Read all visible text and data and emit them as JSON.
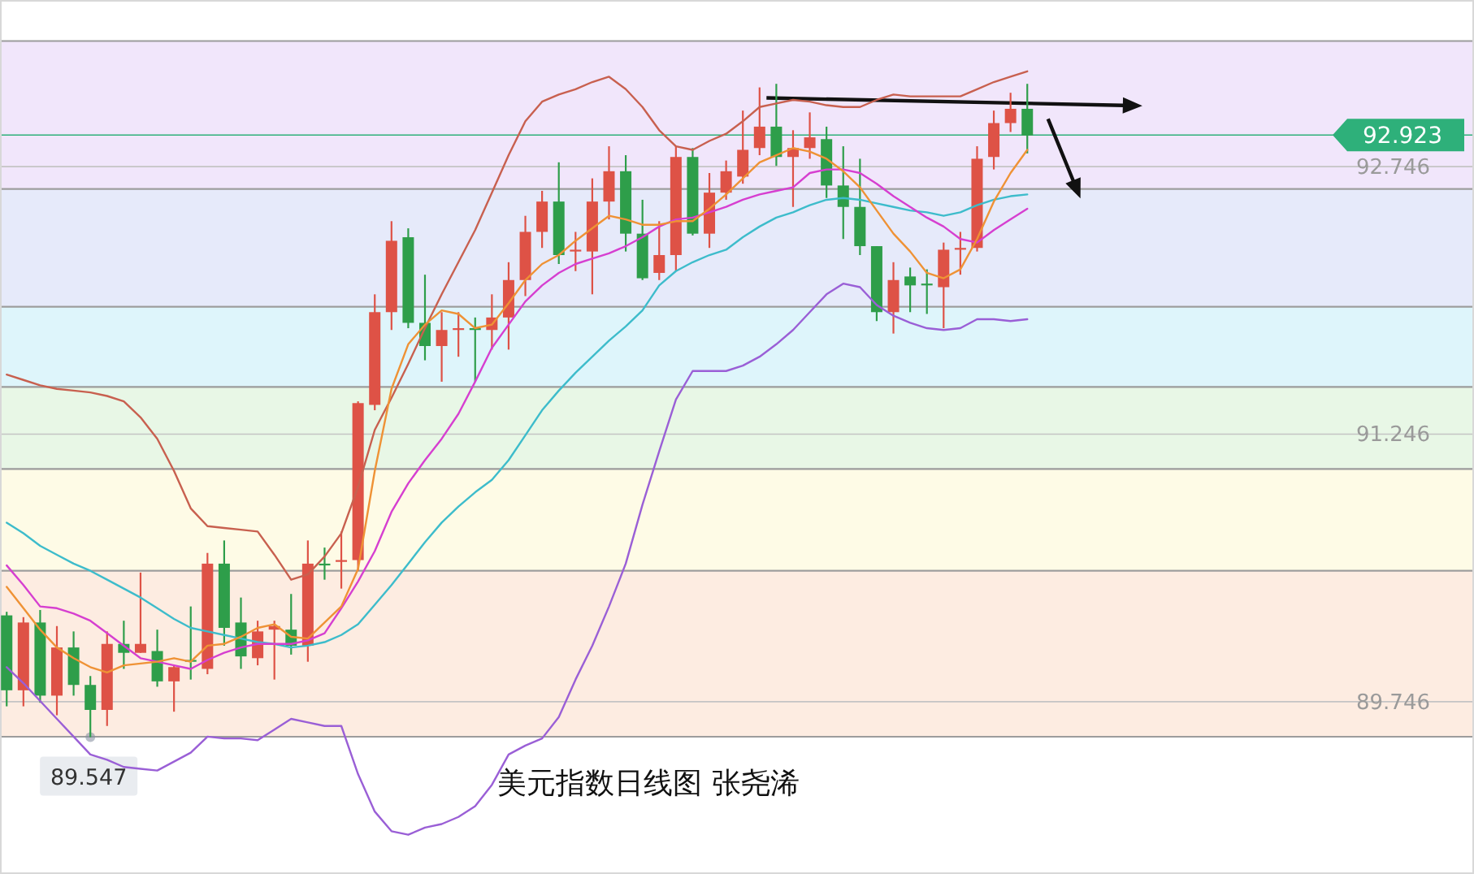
{
  "chart_data": {
    "type": "candlestick",
    "title": "美元指数日线图 张尧浠",
    "categories": [
      null,
      null,
      null,
      null,
      null,
      null,
      null,
      null,
      null,
      null,
      null,
      null,
      null,
      null,
      null,
      null,
      null,
      null,
      null,
      null,
      null,
      null,
      null,
      null,
      null,
      null,
      null,
      null,
      null,
      null,
      null,
      null,
      null,
      null,
      null,
      null,
      null,
      null,
      null,
      null,
      null,
      null,
      null,
      null,
      null,
      null,
      null,
      null,
      null,
      null,
      null,
      null,
      null,
      null,
      null,
      null,
      null,
      null,
      null,
      null,
      null,
      null
    ],
    "ohlc": [
      [
        90.23,
        90.25,
        89.72,
        89.81
      ],
      [
        89.81,
        90.22,
        89.72,
        90.19
      ],
      [
        90.19,
        90.26,
        89.74,
        89.78
      ],
      [
        89.78,
        90.17,
        89.67,
        90.05
      ],
      [
        90.05,
        90.14,
        89.78,
        89.84
      ],
      [
        89.84,
        89.89,
        89.547,
        89.7
      ],
      [
        89.7,
        90.14,
        89.61,
        90.07
      ],
      [
        90.07,
        90.2,
        89.93,
        90.02
      ],
      [
        90.02,
        90.47,
        90.02,
        90.07
      ],
      [
        90.03,
        90.15,
        89.83,
        89.86
      ],
      [
        89.86,
        89.95,
        89.69,
        89.94
      ],
      [
        89.98,
        90.28,
        89.87,
        89.97
      ],
      [
        89.93,
        90.58,
        89.9,
        90.52
      ],
      [
        90.52,
        90.65,
        90.06,
        90.16
      ],
      [
        90.19,
        90.33,
        89.93,
        90.0
      ],
      [
        89.99,
        90.2,
        89.95,
        90.14
      ],
      [
        90.15,
        90.2,
        89.87,
        90.17
      ],
      [
        90.15,
        90.35,
        90.01,
        90.06
      ],
      [
        90.06,
        90.65,
        89.97,
        90.52
      ],
      [
        90.52,
        90.61,
        90.43,
        90.51
      ],
      [
        90.53,
        90.7,
        90.38,
        90.54
      ],
      [
        90.54,
        91.43,
        90.48,
        91.42
      ],
      [
        91.41,
        92.03,
        91.38,
        91.93
      ],
      [
        91.93,
        92.44,
        91.83,
        92.33
      ],
      [
        92.35,
        92.4,
        91.84,
        91.87
      ],
      [
        91.87,
        92.14,
        91.66,
        91.74
      ],
      [
        91.74,
        91.93,
        91.54,
        91.83
      ],
      [
        91.83,
        91.93,
        91.68,
        91.84
      ],
      [
        91.84,
        91.9,
        91.54,
        91.83
      ],
      [
        91.83,
        92.03,
        91.72,
        91.9
      ],
      [
        91.9,
        92.21,
        91.72,
        92.11
      ],
      [
        92.11,
        92.47,
        92.02,
        92.38
      ],
      [
        92.38,
        92.61,
        92.29,
        92.55
      ],
      [
        92.55,
        92.77,
        92.2,
        92.25
      ],
      [
        92.27,
        92.38,
        92.16,
        92.28
      ],
      [
        92.27,
        92.68,
        92.03,
        92.55
      ],
      [
        92.55,
        92.86,
        92.45,
        92.72
      ],
      [
        92.72,
        92.81,
        92.27,
        92.37
      ],
      [
        92.37,
        92.56,
        92.11,
        92.12
      ],
      [
        92.15,
        92.44,
        92.11,
        92.25
      ],
      [
        92.25,
        92.86,
        92.16,
        92.8
      ],
      [
        92.8,
        92.85,
        92.36,
        92.37
      ],
      [
        92.37,
        92.71,
        92.29,
        92.6
      ],
      [
        92.6,
        92.78,
        92.56,
        92.72
      ],
      [
        92.69,
        93.06,
        92.65,
        92.84
      ],
      [
        92.85,
        93.19,
        92.81,
        92.97
      ],
      [
        92.97,
        93.21,
        92.75,
        92.8
      ],
      [
        92.8,
        92.95,
        92.52,
        92.85
      ],
      [
        92.85,
        93.05,
        92.79,
        92.91
      ],
      [
        92.9,
        92.97,
        92.57,
        92.64
      ],
      [
        92.64,
        92.86,
        92.34,
        92.52
      ],
      [
        92.52,
        92.79,
        92.25,
        92.3
      ],
      [
        92.3,
        92.3,
        91.88,
        91.93
      ],
      [
        91.93,
        92.21,
        91.81,
        92.11
      ],
      [
        92.13,
        92.18,
        91.93,
        92.08
      ],
      [
        92.09,
        92.17,
        91.92,
        92.08
      ],
      [
        92.07,
        92.32,
        91.84,
        92.28
      ],
      [
        92.28,
        92.38,
        92.14,
        92.29
      ],
      [
        92.29,
        92.86,
        92.27,
        92.79
      ],
      [
        92.8,
        93.06,
        92.73,
        92.99
      ],
      [
        92.99,
        93.16,
        92.94,
        93.07
      ],
      [
        93.07,
        93.21,
        92.82,
        92.92
      ]
    ],
    "colors": [
      "#2e9e4a",
      "#de5246",
      "#2e9e4a",
      "#de5246",
      "#2e9e4a",
      "#2e9e4a",
      "#de5246",
      "#2e9e4a",
      "#de5246",
      "#2e9e4a",
      "#de5246",
      "#2e9e4a",
      "#de5246",
      "#2e9e4a",
      "#2e9e4a",
      "#de5246",
      "#de5246",
      "#2e9e4a",
      "#de5246",
      "#2e9e4a",
      "#de5246",
      "#de5246",
      "#de5246",
      "#de5246",
      "#2e9e4a",
      "#2e9e4a",
      "#de5246",
      "#de5246",
      "#2e9e4a",
      "#de5246",
      "#de5246",
      "#de5246",
      "#de5246",
      "#2e9e4a",
      "#de5246",
      "#de5246",
      "#de5246",
      "#2e9e4a",
      "#2e9e4a",
      "#de5246",
      "#de5246",
      "#2e9e4a",
      "#de5246",
      "#de5246",
      "#de5246",
      "#de5246",
      "#2e9e4a",
      "#de5246",
      "#de5246",
      "#2e9e4a",
      "#2e9e4a",
      "#2e9e4a",
      "#2e9e4a",
      "#de5246",
      "#2e9e4a",
      "#2e9e4a",
      "#de5246",
      "#de5246",
      "#de5246",
      "#de5246",
      "#de5246",
      "#2e9e4a"
    ],
    "series": [
      {
        "type": "line",
        "color": "#c8604f",
        "values": [
          91.58,
          91.55,
          91.52,
          91.5,
          91.49,
          91.48,
          91.46,
          91.43,
          91.34,
          91.22,
          91.04,
          90.83,
          90.73,
          90.72,
          90.71,
          90.7,
          90.57,
          90.43,
          90.46,
          90.56,
          90.69,
          90.95,
          91.27,
          91.45,
          91.64,
          91.84,
          92.03,
          92.21,
          92.39,
          92.6,
          92.81,
          93.0,
          93.11,
          93.15,
          93.18,
          93.22,
          93.25,
          93.18,
          93.08,
          92.95,
          92.86,
          92.84,
          92.89,
          92.93,
          93.0,
          93.08,
          93.1,
          93.12,
          93.11,
          93.09,
          93.08,
          93.08,
          93.12,
          93.15,
          93.14,
          93.14,
          93.14,
          93.14,
          93.18,
          93.22,
          93.25,
          93.28
        ]
      },
      {
        "type": "line",
        "color": "#3dbccb",
        "values": [
          90.75,
          90.69,
          90.62,
          90.57,
          90.52,
          90.48,
          90.43,
          90.38,
          90.33,
          90.27,
          90.21,
          90.16,
          90.14,
          90.12,
          90.1,
          90.08,
          90.07,
          90.05,
          90.06,
          90.08,
          90.12,
          90.18,
          90.29,
          90.4,
          90.52,
          90.64,
          90.75,
          90.84,
          90.92,
          90.99,
          91.1,
          91.24,
          91.38,
          91.49,
          91.59,
          91.68,
          91.77,
          91.85,
          91.94,
          92.08,
          92.16,
          92.21,
          92.25,
          92.28,
          92.35,
          92.41,
          92.46,
          92.49,
          92.53,
          92.56,
          92.57,
          92.56,
          92.54,
          92.52,
          92.5,
          92.49,
          92.47,
          92.49,
          92.53,
          92.56,
          92.58,
          92.59
        ]
      },
      {
        "type": "line",
        "color": "#9a5fd6",
        "values": [
          89.94,
          89.85,
          89.75,
          89.65,
          89.55,
          89.45,
          89.42,
          89.38,
          89.37,
          89.36,
          89.41,
          89.46,
          89.55,
          89.54,
          89.54,
          89.53,
          89.59,
          89.65,
          89.63,
          89.61,
          89.61,
          89.34,
          89.13,
          89.02,
          89.0,
          89.04,
          89.06,
          89.1,
          89.16,
          89.28,
          89.45,
          89.5,
          89.54,
          89.66,
          89.87,
          90.06,
          90.28,
          90.52,
          90.85,
          91.15,
          91.44,
          91.6,
          91.6,
          91.6,
          91.63,
          91.68,
          91.75,
          91.83,
          91.93,
          92.03,
          92.09,
          92.07,
          91.97,
          91.91,
          91.87,
          91.84,
          91.83,
          91.84,
          91.89,
          91.89,
          91.88,
          91.89
        ]
      },
      {
        "type": "line",
        "color": "#d63fd0",
        "values": [
          90.51,
          90.4,
          90.28,
          90.27,
          90.24,
          90.2,
          90.13,
          90.06,
          89.99,
          89.97,
          89.95,
          89.93,
          89.98,
          90.02,
          90.05,
          90.07,
          90.07,
          90.07,
          90.09,
          90.13,
          90.27,
          90.42,
          90.59,
          90.81,
          90.97,
          91.1,
          91.22,
          91.36,
          91.54,
          91.73,
          91.86,
          91.99,
          92.08,
          92.15,
          92.2,
          92.23,
          92.26,
          92.3,
          92.35,
          92.41,
          92.45,
          92.46,
          92.49,
          92.52,
          92.56,
          92.59,
          92.61,
          92.63,
          92.71,
          92.73,
          92.73,
          92.71,
          92.65,
          92.58,
          92.52,
          92.46,
          92.41,
          92.34,
          92.32,
          92.39,
          92.45,
          92.51
        ]
      },
      {
        "type": "line",
        "color": "#ef9235",
        "values": [
          90.39,
          90.27,
          90.15,
          90.05,
          89.99,
          89.94,
          89.91,
          89.95,
          89.96,
          89.97,
          89.99,
          89.97,
          90.06,
          90.07,
          90.11,
          90.16,
          90.18,
          90.11,
          90.1,
          90.19,
          90.28,
          90.49,
          91.04,
          91.5,
          91.75,
          91.86,
          91.94,
          91.92,
          91.84,
          91.86,
          91.98,
          92.11,
          92.2,
          92.25,
          92.33,
          92.4,
          92.47,
          92.45,
          92.42,
          92.42,
          92.44,
          92.44,
          92.51,
          92.59,
          92.68,
          92.77,
          92.81,
          92.85,
          92.83,
          92.79,
          92.72,
          92.63,
          92.5,
          92.37,
          92.27,
          92.15,
          92.12,
          92.17,
          92.34,
          92.55,
          92.71,
          92.84
        ]
      }
    ],
    "ylim": [
      88.78,
      93.68
    ],
    "yticks": [
      89.746,
      91.246,
      92.746
    ],
    "tick_labels": "y",
    "grid": "y",
    "bands": [
      {
        "axis": "y",
        "from": 92.62,
        "to": 93.45,
        "color": "#f1e6fb"
      },
      {
        "axis": "y",
        "from": 91.96,
        "to": 92.62,
        "color": "#e6eafa"
      },
      {
        "axis": "y",
        "from": 91.51,
        "to": 91.96,
        "color": "#def5fb"
      },
      {
        "axis": "y",
        "from": 91.05,
        "to": 91.51,
        "color": "#e8f7e6"
      },
      {
        "axis": "y",
        "from": 90.48,
        "to": 91.05,
        "color": "#fefbe6"
      },
      {
        "axis": "y",
        "from": 89.55,
        "to": 90.48,
        "color": "#fdece1"
      }
    ],
    "ref_lines": [
      {
        "axis": "y",
        "value": 92.923,
        "label": "92.923",
        "color": "#2eb07a"
      }
    ],
    "annotations": [
      {
        "text": "89.547",
        "y": 89.547
      }
    ]
  }
}
